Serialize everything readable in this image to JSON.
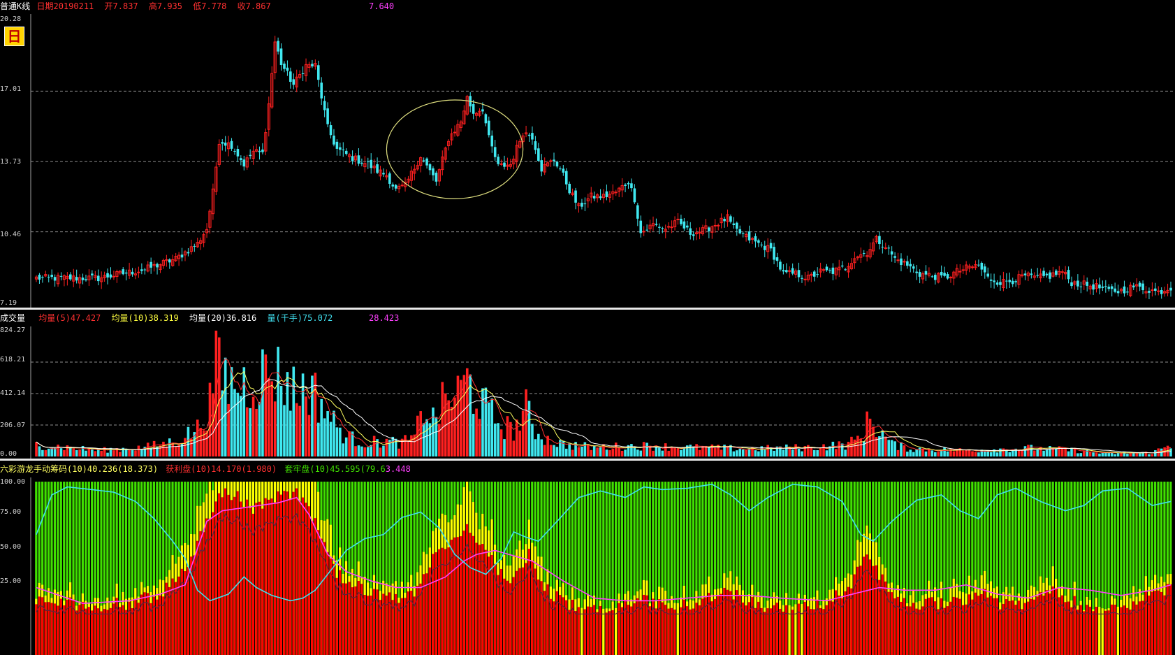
{
  "price_panel": {
    "header": {
      "chart_type": "普通K线",
      "date_label": "日期20190211",
      "open_label": "开7.837",
      "high_label": "高7.935",
      "low_label": "低7.778",
      "close_label": "收7.867",
      "extra_value": "7.640"
    },
    "period_badge": "日",
    "y_ticks": [
      "20.28",
      "17.01",
      "13.73",
      "10.46",
      "7.19"
    ]
  },
  "volume_panel": {
    "header": {
      "title": "成交量",
      "ma5": "均量(5)47.427",
      "ma10": "均量(10)38.319",
      "ma20": "均量(20)36.816",
      "vol": "量(千手)75.072",
      "extra_value": "28.423"
    },
    "y_ticks": [
      "824.27",
      "618.21",
      "412.14",
      "206.07",
      "0.00"
    ]
  },
  "chip_panel": {
    "header": {
      "title": "六彩游龙手动筹码(10)40.236(18.373)",
      "profit": "获利盘(10)14.170(1.980)",
      "trapped": "套牢盘(10)45.595(79.6",
      "extra": "3.448"
    },
    "y_ticks": [
      "100.00",
      "75.00",
      "50.00",
      "25.00"
    ]
  },
  "colors": {
    "up": "#ff2020",
    "down": "#40e8f0",
    "ma5": "#ff3030",
    "ma10": "#ffff60",
    "ma20": "#ffffff",
    "chip_green": "#40e000",
    "chip_yellow": "#ffff00",
    "chip_red": "#ff0000",
    "line_cyan": "#40e0f0",
    "line_magenta": "#ff40ff",
    "line_dark": "#602040",
    "ellipse": "#e0e080",
    "grid": "#909090"
  },
  "chart_data": [
    {
      "type": "candlestick",
      "y_axis_ticks": [
        20.28,
        17.01,
        13.73,
        10.46,
        7.19
      ],
      "ylim": [
        7.19,
        20.28
      ],
      "annotation": "ellipse around a rebound",
      "close_path": [
        [
          0,
          8.3
        ],
        [
          20,
          8.3
        ],
        [
          35,
          8.7
        ],
        [
          45,
          9.2
        ],
        [
          52,
          9.9
        ],
        [
          55,
          10.6
        ],
        [
          57,
          12.3
        ],
        [
          59,
          14.7
        ],
        [
          63,
          14.5
        ],
        [
          67,
          13.6
        ],
        [
          70,
          14.2
        ],
        [
          73,
          14.1
        ],
        [
          75,
          16.4
        ],
        [
          77,
          19.3
        ],
        [
          79,
          18.3
        ],
        [
          83,
          17.3
        ],
        [
          87,
          18.2
        ],
        [
          90,
          18.2
        ],
        [
          94,
          15.3
        ],
        [
          97,
          14.3
        ],
        [
          102,
          13.9
        ],
        [
          107,
          13.6
        ],
        [
          110,
          13.3
        ],
        [
          113,
          13.1
        ],
        [
          116,
          12.4
        ],
        [
          119,
          12.6
        ],
        [
          124,
          14.0
        ],
        [
          126,
          13.5
        ],
        [
          129,
          12.8
        ],
        [
          133,
          14.8
        ],
        [
          137,
          15.6
        ],
        [
          139,
          16.7
        ],
        [
          141,
          16.0
        ],
        [
          144,
          16.2
        ],
        [
          146,
          14.8
        ],
        [
          149,
          13.5
        ],
        [
          153,
          13.6
        ],
        [
          157,
          15.1
        ],
        [
          160,
          14.9
        ],
        [
          163,
          13.4
        ],
        [
          167,
          13.8
        ],
        [
          169,
          13.4
        ],
        [
          172,
          12.4
        ],
        [
          175,
          11.6
        ],
        [
          179,
          12.1
        ],
        [
          183,
          12.1
        ],
        [
          187,
          12.3
        ],
        [
          191,
          12.8
        ],
        [
          193,
          12.0
        ],
        [
          195,
          10.4
        ],
        [
          199,
          10.8
        ],
        [
          203,
          10.6
        ],
        [
          207,
          10.9
        ],
        [
          211,
          10.4
        ],
        [
          215,
          10.5
        ],
        [
          219,
          10.8
        ],
        [
          223,
          11.1
        ],
        [
          225,
          10.6
        ],
        [
          229,
          10.2
        ],
        [
          233,
          9.9
        ],
        [
          237,
          9.6
        ],
        [
          241,
          8.5
        ],
        [
          245,
          8.5
        ],
        [
          249,
          8.3
        ],
        [
          253,
          8.6
        ],
        [
          257,
          8.6
        ],
        [
          261,
          8.8
        ],
        [
          264,
          9.3
        ],
        [
          268,
          9.5
        ],
        [
          271,
          10.1
        ],
        [
          274,
          9.8
        ],
        [
          277,
          9.2
        ],
        [
          281,
          8.9
        ],
        [
          285,
          8.5
        ],
        [
          289,
          8.4
        ],
        [
          293,
          8.3
        ],
        [
          297,
          8.6
        ],
        [
          301,
          8.8
        ],
        [
          304,
          8.9
        ],
        [
          307,
          8.3
        ],
        [
          311,
          8.1
        ],
        [
          315,
          8.2
        ],
        [
          319,
          8.4
        ],
        [
          323,
          8.3
        ],
        [
          327,
          8.4
        ],
        [
          331,
          8.6
        ],
        [
          334,
          8.1
        ],
        [
          338,
          8.0
        ],
        [
          342,
          7.9
        ],
        [
          346,
          7.7
        ],
        [
          350,
          7.7
        ],
        [
          354,
          7.9
        ],
        [
          358,
          7.8
        ],
        [
          362,
          7.65
        ],
        [
          366,
          7.87
        ]
      ]
    },
    {
      "type": "bar",
      "series": [
        {
          "name": "量(千手)",
          "values_note": "per-day volume bars, red=up / cyan=down"
        },
        {
          "name": "均量(5)"
        },
        {
          "name": "均量(10)"
        },
        {
          "name": "均量(20)"
        }
      ],
      "y_axis_ticks": [
        824.27,
        618.21,
        412.14,
        206.07,
        0.0
      ],
      "ylim": [
        0,
        824.27
      ],
      "volume_path": [
        [
          0,
          80
        ],
        [
          20,
          40
        ],
        [
          35,
          60
        ],
        [
          45,
          100
        ],
        [
          52,
          180
        ],
        [
          56,
          350
        ],
        [
          58,
          650
        ],
        [
          60,
          520
        ],
        [
          64,
          470
        ],
        [
          68,
          480
        ],
        [
          72,
          530
        ],
        [
          76,
          560
        ],
        [
          79,
          520
        ],
        [
          84,
          420
        ],
        [
          88,
          460
        ],
        [
          92,
          350
        ],
        [
          96,
          220
        ],
        [
          100,
          130
        ],
        [
          106,
          90
        ],
        [
          112,
          100
        ],
        [
          118,
          90
        ],
        [
          122,
          120
        ],
        [
          125,
          330
        ],
        [
          128,
          240
        ],
        [
          132,
          370
        ],
        [
          136,
          410
        ],
        [
          139,
          500
        ],
        [
          142,
          400
        ],
        [
          146,
          290
        ],
        [
          150,
          210
        ],
        [
          154,
          170
        ],
        [
          158,
          310
        ],
        [
          161,
          170
        ],
        [
          165,
          110
        ],
        [
          170,
          80
        ],
        [
          180,
          60
        ],
        [
          195,
          70
        ],
        [
          210,
          60
        ],
        [
          230,
          50
        ],
        [
          250,
          60
        ],
        [
          262,
          80
        ],
        [
          266,
          130
        ],
        [
          269,
          250
        ],
        [
          272,
          170
        ],
        [
          276,
          80
        ],
        [
          282,
          50
        ],
        [
          300,
          40
        ],
        [
          320,
          55
        ],
        [
          332,
          45
        ],
        [
          345,
          20
        ],
        [
          360,
          25
        ],
        [
          366,
          75
        ]
      ]
    },
    {
      "type": "area",
      "series": [
        {
          "name": "获利盘(10)"
        },
        {
          "name": "套牢盘(10)"
        }
      ],
      "y_axis_ticks": [
        100,
        75,
        50,
        25
      ],
      "ylim": [
        0,
        100
      ],
      "profit_path": [
        [
          0,
          10
        ],
        [
          20,
          6
        ],
        [
          30,
          8
        ],
        [
          40,
          15
        ],
        [
          45,
          25
        ],
        [
          50,
          42
        ],
        [
          55,
          72
        ],
        [
          60,
          92
        ],
        [
          65,
          88
        ],
        [
          70,
          80
        ],
        [
          75,
          85
        ],
        [
          80,
          93
        ],
        [
          85,
          90
        ],
        [
          88,
          80
        ],
        [
          92,
          55
        ],
        [
          97,
          30
        ],
        [
          102,
          22
        ],
        [
          107,
          18
        ],
        [
          112,
          12
        ],
        [
          118,
          10
        ],
        [
          124,
          20
        ],
        [
          128,
          45
        ],
        [
          132,
          50
        ],
        [
          136,
          62
        ],
        [
          140,
          66
        ],
        [
          143,
          55
        ],
        [
          147,
          40
        ],
        [
          152,
          22
        ],
        [
          156,
          30
        ],
        [
          159,
          45
        ],
        [
          162,
          30
        ],
        [
          166,
          15
        ],
        [
          172,
          7
        ],
        [
          178,
          3
        ],
        [
          185,
          2
        ],
        [
          190,
          6
        ],
        [
          196,
          10
        ],
        [
          204,
          4
        ],
        [
          212,
          8
        ],
        [
          222,
          18
        ],
        [
          228,
          12
        ],
        [
          235,
          6
        ],
        [
          245,
          3
        ],
        [
          255,
          8
        ],
        [
          263,
          22
        ],
        [
          268,
          45
        ],
        [
          271,
          35
        ],
        [
          275,
          15
        ],
        [
          282,
          8
        ],
        [
          290,
          8
        ],
        [
          300,
          12
        ],
        [
          305,
          18
        ],
        [
          312,
          6
        ],
        [
          320,
          8
        ],
        [
          328,
          20
        ],
        [
          334,
          10
        ],
        [
          342,
          3
        ],
        [
          350,
          2
        ],
        [
          360,
          15
        ],
        [
          366,
          20
        ]
      ],
      "cyan_line_path": [
        [
          0,
          60
        ],
        [
          5,
          90
        ],
        [
          10,
          96
        ],
        [
          18,
          94
        ],
        [
          25,
          92
        ],
        [
          32,
          85
        ],
        [
          38,
          72
        ],
        [
          44,
          55
        ],
        [
          48,
          42
        ],
        [
          52,
          18
        ],
        [
          56,
          10
        ],
        [
          62,
          15
        ],
        [
          67,
          28
        ],
        [
          71,
          20
        ],
        [
          76,
          14
        ],
        [
          82,
          10
        ],
        [
          86,
          12
        ],
        [
          90,
          18
        ],
        [
          95,
          33
        ],
        [
          100,
          48
        ],
        [
          106,
          57
        ],
        [
          112,
          60
        ],
        [
          118,
          73
        ],
        [
          124,
          77
        ],
        [
          130,
          65
        ],
        [
          135,
          45
        ],
        [
          140,
          35
        ],
        [
          145,
          30
        ],
        [
          150,
          42
        ],
        [
          154,
          62
        ],
        [
          158,
          58
        ],
        [
          162,
          55
        ],
        [
          168,
          70
        ],
        [
          175,
          88
        ],
        [
          182,
          93
        ],
        [
          190,
          88
        ],
        [
          196,
          96
        ],
        [
          202,
          94
        ],
        [
          210,
          95
        ],
        [
          218,
          98
        ],
        [
          224,
          90
        ],
        [
          230,
          78
        ],
        [
          236,
          88
        ],
        [
          244,
          98
        ],
        [
          252,
          96
        ],
        [
          260,
          85
        ],
        [
          266,
          60
        ],
        [
          270,
          55
        ],
        [
          276,
          70
        ],
        [
          284,
          86
        ],
        [
          292,
          90
        ],
        [
          298,
          78
        ],
        [
          304,
          72
        ],
        [
          310,
          90
        ],
        [
          316,
          95
        ],
        [
          324,
          85
        ],
        [
          332,
          78
        ],
        [
          338,
          82
        ],
        [
          344,
          93
        ],
        [
          352,
          95
        ],
        [
          360,
          82
        ],
        [
          366,
          85
        ]
      ],
      "magenta_line_path": [
        [
          0,
          20
        ],
        [
          15,
          8
        ],
        [
          30,
          10
        ],
        [
          40,
          15
        ],
        [
          48,
          22
        ],
        [
          55,
          70
        ],
        [
          60,
          78
        ],
        [
          66,
          80
        ],
        [
          72,
          82
        ],
        [
          78,
          84
        ],
        [
          84,
          88
        ],
        [
          88,
          75
        ],
        [
          94,
          45
        ],
        [
          100,
          32
        ],
        [
          108,
          25
        ],
        [
          116,
          20
        ],
        [
          124,
          20
        ],
        [
          132,
          28
        ],
        [
          138,
          40
        ],
        [
          142,
          45
        ],
        [
          148,
          48
        ],
        [
          154,
          44
        ],
        [
          160,
          40
        ],
        [
          170,
          25
        ],
        [
          180,
          12
        ],
        [
          190,
          10
        ],
        [
          200,
          10
        ],
        [
          210,
          12
        ],
        [
          220,
          14
        ],
        [
          230,
          14
        ],
        [
          240,
          12
        ],
        [
          255,
          10
        ],
        [
          265,
          16
        ],
        [
          272,
          20
        ],
        [
          280,
          18
        ],
        [
          290,
          18
        ],
        [
          300,
          22
        ],
        [
          310,
          15
        ],
        [
          320,
          12
        ],
        [
          330,
          20
        ],
        [
          340,
          18
        ],
        [
          350,
          14
        ],
        [
          360,
          18
        ],
        [
          366,
          22
        ]
      ]
    }
  ]
}
